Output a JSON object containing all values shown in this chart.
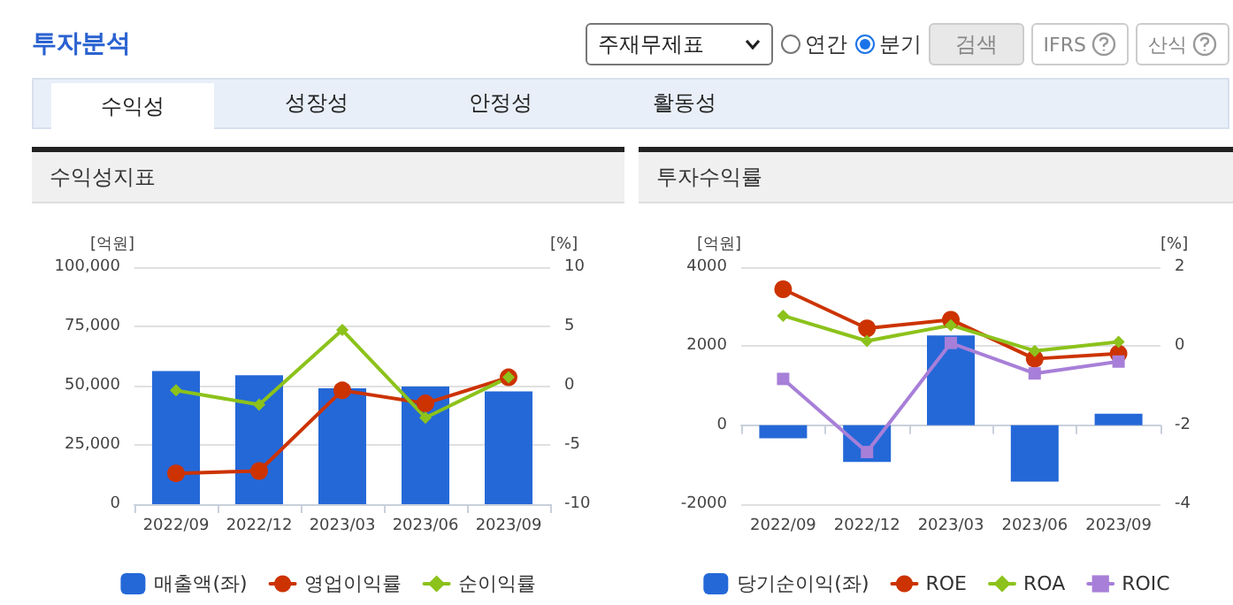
{
  "chart_data": [
    {
      "type": "other",
      "title": "투자분석",
      "annotations": [
        "주재무제표",
        "연간",
        "분기",
        "검색",
        "IFRS",
        "산식",
        "수익성",
        "성장성",
        "안정성",
        "활동성"
      ]
    },
    {
      "type": "bar",
      "title": "수익성지표",
      "ylabel": "[억원]",
      "y2label": "[%]",
      "categories": [
        "2022/09",
        "2022/12",
        "2023/03",
        "2023/06",
        "2023/09"
      ],
      "ylim": [
        0,
        100000
      ],
      "yticks": [
        0,
        {
          "value": 25000,
          "label": "25,000"
        },
        {
          "value": 50000,
          "label": "50,000"
        },
        {
          "value": 75000,
          "label": "75,000"
        },
        {
          "value": 100000,
          "label": "100,000"
        }
      ],
      "y2lim": [
        -10,
        10
      ],
      "y2ticks": [
        -10,
        -5,
        0,
        5,
        10
      ],
      "grid": "y",
      "legend": "bottom",
      "series": [
        {
          "name": "매출액(좌)",
          "type": "bar",
          "color": "#2468d8",
          "values": [
            56200,
            54400,
            48900,
            49600,
            47600
          ]
        },
        {
          "name": "영업이익률",
          "type": "line",
          "axis": "y2",
          "color": "#cc3300",
          "marker": "circle",
          "values": [
            -7.4,
            -7.2,
            -0.4,
            -1.5,
            0.7
          ]
        },
        {
          "name": "순이익률",
          "type": "line",
          "axis": "y2",
          "color": "#8cc21b",
          "marker": "diamond",
          "values": [
            -0.4,
            -1.6,
            4.7,
            -2.7,
            0.7
          ]
        }
      ]
    },
    {
      "type": "bar",
      "title": "투자수익률",
      "ylabel": "[억원]",
      "y2label": "[%]",
      "categories": [
        "2022/09",
        "2022/12",
        "2023/03",
        "2023/06",
        "2023/09"
      ],
      "ylim": [
        -2000,
        4000
      ],
      "yticks": [
        -2000,
        0,
        2000,
        4000
      ],
      "y2lim": [
        -4,
        2
      ],
      "y2ticks": [
        -4,
        -2,
        0,
        2
      ],
      "grid": "y",
      "legend": "bottom",
      "series": [
        {
          "name": "당기순이익(좌)",
          "type": "bar",
          "color": "#2468d8",
          "values": [
            -330,
            -930,
            2270,
            -1430,
            290
          ]
        },
        {
          "name": "ROE",
          "type": "line",
          "axis": "y2",
          "color": "#cc3300",
          "marker": "circle",
          "values": [
            1.44,
            0.45,
            0.67,
            -0.32,
            -0.19
          ]
        },
        {
          "name": "ROA",
          "type": "line",
          "axis": "y2",
          "color": "#8cc21b",
          "marker": "diamond",
          "values": [
            0.77,
            0.13,
            0.53,
            -0.12,
            0.11
          ]
        },
        {
          "name": "ROIC",
          "type": "line",
          "axis": "y2",
          "color": "#a77fd8",
          "marker": "square",
          "values": [
            -0.83,
            -2.68,
            0.08,
            -0.69,
            -0.39
          ]
        }
      ]
    }
  ]
}
